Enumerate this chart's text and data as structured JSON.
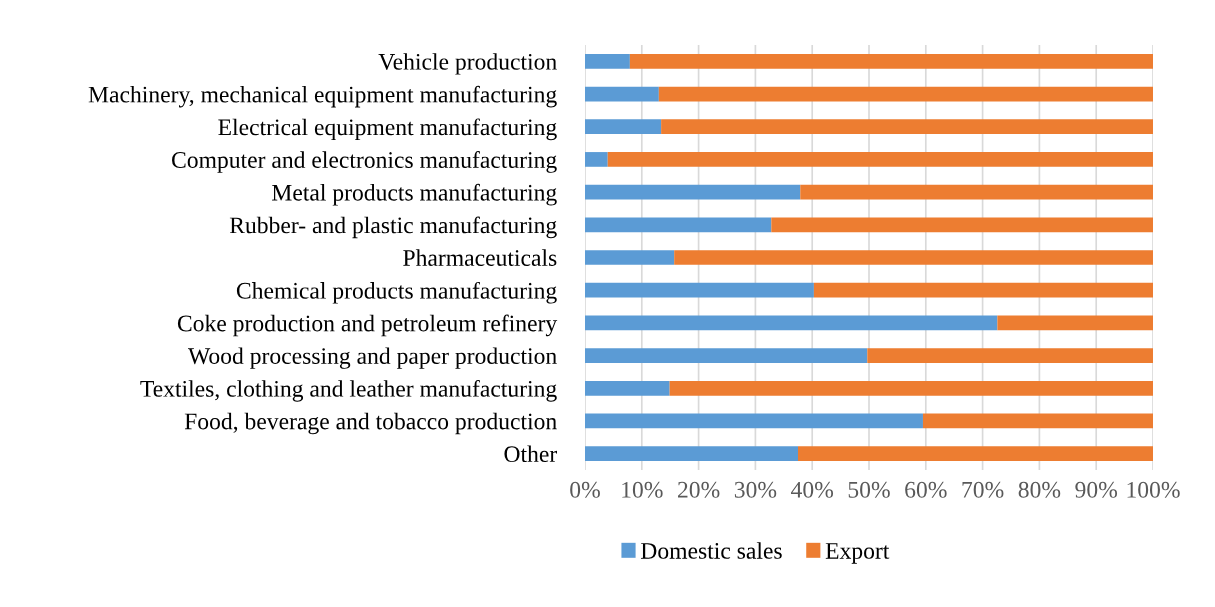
{
  "chart_data": {
    "type": "bar",
    "orientation": "horizontal",
    "stacked": true,
    "categories": [
      "Vehicle production",
      "Machinery, mechanical equipment manufacturing",
      "Electrical equipment manufacturing",
      "Computer and electronics manufacturing",
      "Metal products manufacturing",
      "Rubber- and plastic manufacturing",
      "Pharmaceuticals",
      "Chemical products manufacturing",
      "Coke production and petroleum refinery",
      "Wood processing and paper production",
      "Textiles, clothing and leather manufacturing",
      "Food, beverage and tobacco production",
      "Other"
    ],
    "series": [
      {
        "name": "Domestic sales",
        "color": "#5b9bd5",
        "values": [
          7.9,
          13,
          13.4,
          4,
          37.9,
          32.8,
          15.7,
          40.3,
          72.6,
          49.7,
          14.9,
          59.5,
          37.5
        ]
      },
      {
        "name": "Export",
        "color": "#ed7d31",
        "values": [
          92.1,
          87,
          86.6,
          96,
          62.1,
          67.2,
          84.3,
          59.7,
          27.4,
          50.3,
          85.1,
          40.5,
          62.5
        ]
      }
    ],
    "xlim": [
      0,
      100
    ],
    "xticks": [
      {
        "value": 0,
        "label": "0%"
      },
      {
        "value": 10,
        "label": "10%"
      },
      {
        "value": 20,
        "label": "20%"
      },
      {
        "value": 30,
        "label": "30%"
      },
      {
        "value": 40,
        "label": "40%"
      },
      {
        "value": 50,
        "label": "50%"
      },
      {
        "value": 60,
        "label": "60%"
      },
      {
        "value": 70,
        "label": "70%"
      },
      {
        "value": 80,
        "label": "80%"
      },
      {
        "value": 90,
        "label": "90%"
      },
      {
        "value": 100,
        "label": "100%"
      }
    ],
    "grid": "x",
    "legend": "bottom"
  }
}
